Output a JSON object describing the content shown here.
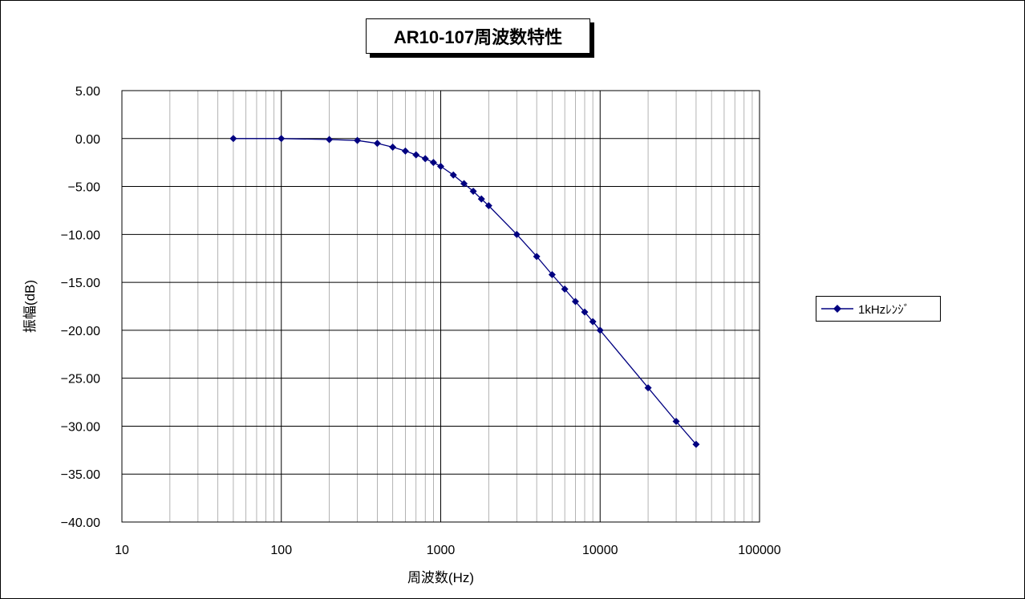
{
  "chart_data": {
    "type": "line",
    "title": "AR10-107周波数特性",
    "xlabel": "周波数(Hz)",
    "ylabel": "振幅(dB)",
    "x_scale": "log",
    "xlim": [
      10,
      100000
    ],
    "ylim": [
      -40,
      5
    ],
    "x_tick_labels": [
      "10",
      "100",
      "1000",
      "10000",
      "100000"
    ],
    "y_tick_labels": [
      "5.00",
      "0.00",
      "-5.00",
      "-10.00",
      "-15.00",
      "-20.00",
      "-25.00",
      "-30.00",
      "-35.00",
      "-40.00"
    ],
    "grid": true,
    "legend_position": "right",
    "series": [
      {
        "name": "1kHzﾚﾝｼﾞ",
        "color": "#000080",
        "marker": "diamond",
        "x": [
          50,
          100,
          200,
          300,
          400,
          500,
          600,
          700,
          800,
          900,
          1000,
          1200,
          1400,
          1600,
          1800,
          2000,
          3000,
          4000,
          5000,
          6000,
          7000,
          8000,
          9000,
          10000,
          20000,
          30000,
          40000
        ],
        "y": [
          0.0,
          0.0,
          -0.1,
          -0.2,
          -0.5,
          -0.9,
          -1.3,
          -1.7,
          -2.1,
          -2.5,
          -2.9,
          -3.8,
          -4.7,
          -5.5,
          -6.3,
          -7.0,
          -10.0,
          -12.3,
          -14.2,
          -15.7,
          -17.0,
          -18.1,
          -19.1,
          -20.0,
          -26.0,
          -29.5,
          -31.9
        ]
      }
    ]
  }
}
